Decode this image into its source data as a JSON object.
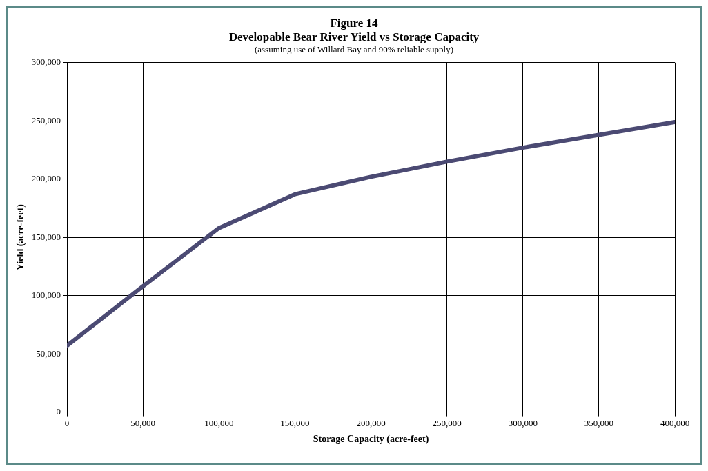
{
  "chart_data": {
    "type": "line",
    "title": "Figure 14",
    "subtitle": "Developable Bear River Yield vs Storage Capacity",
    "annotations": [
      "(assuming use of Willard Bay and 90% reliable supply)"
    ],
    "xlabel": "Storage Capacity (acre-feet)",
    "ylabel": "Yield (acre-feet)",
    "x": [
      0,
      50000,
      100000,
      150000,
      200000,
      250000,
      300000,
      350000,
      400000
    ],
    "series": [
      {
        "color": "#4b4a73",
        "values": [
          57000,
          108000,
          158000,
          187000,
          202000,
          215000,
          227000,
          238000,
          249000
        ]
      }
    ],
    "xlim": [
      0,
      400000
    ],
    "xticks": [
      {
        "value": 0,
        "label": "0"
      },
      {
        "value": 50000,
        "label": "50,000"
      },
      {
        "value": 100000,
        "label": "100,000"
      },
      {
        "value": 150000,
        "label": "150,000"
      },
      {
        "value": 200000,
        "label": "200,000"
      },
      {
        "value": 250000,
        "label": "250,000"
      },
      {
        "value": 300000,
        "label": "300,000"
      },
      {
        "value": 350000,
        "label": "350,000"
      },
      {
        "value": 400000,
        "label": "400,000"
      }
    ],
    "ylim": [
      0,
      300000
    ],
    "yticks": [
      {
        "value": 0,
        "label": "0"
      },
      {
        "value": 50000,
        "label": "50,000"
      },
      {
        "value": 100000,
        "label": "100,000"
      },
      {
        "value": 150000,
        "label": "150,000"
      },
      {
        "value": 200000,
        "label": "200,000"
      },
      {
        "value": 250000,
        "label": "250,000"
      },
      {
        "value": 300000,
        "label": "300,000"
      }
    ],
    "grid": true,
    "legend": false,
    "marker": "none",
    "line_style": "solid"
  }
}
